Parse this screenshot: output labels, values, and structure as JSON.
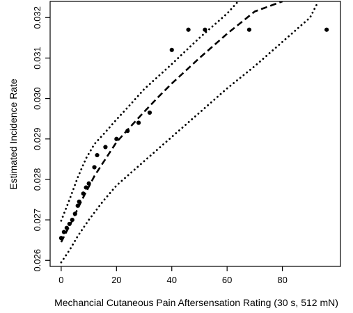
{
  "chart_data": {
    "type": "scatter",
    "title": "",
    "xlabel": "Mechancial Cutaneous Pain Aftersensation Rating (30 s, 512 mN)",
    "ylabel": "Estimated Incidence Rate",
    "xlim": [
      -4,
      101
    ],
    "ylim": [
      0.02585,
      0.0324
    ],
    "xticks": [
      0,
      20,
      40,
      60,
      80
    ],
    "xtick_labels": [
      "0",
      "20",
      "40",
      "60",
      "80"
    ],
    "yticks": [
      0.026,
      0.027,
      0.028,
      0.029,
      0.03,
      0.031,
      0.032
    ],
    "ytick_labels": [
      "0.026",
      "0.027",
      "0.028",
      "0.029",
      "0.030",
      "0.031",
      "0.032"
    ],
    "grid": false,
    "legend": "none",
    "colors": {
      "points": "#000000",
      "fit": "#000000",
      "ci": "#000000",
      "axis": "#000000"
    },
    "series": [
      {
        "type": "points",
        "x": [
          0,
          1,
          2,
          3,
          4,
          5,
          6,
          6.5,
          8,
          9,
          10,
          12,
          13,
          16,
          20,
          24,
          28,
          32,
          40,
          46,
          52,
          68,
          96
        ],
        "y": [
          0.02655,
          0.0267,
          0.0268,
          0.0269,
          0.027,
          0.02715,
          0.02735,
          0.02745,
          0.02765,
          0.0278,
          0.0279,
          0.0283,
          0.0286,
          0.0288,
          0.029,
          0.0292,
          0.0294,
          0.02965,
          0.0312,
          0.0317,
          0.0317,
          0.0317,
          0.0317
        ]
      },
      {
        "type": "fit-line",
        "x": [
          0,
          2,
          4,
          6,
          8,
          10,
          12,
          15,
          20,
          25,
          30,
          35,
          40,
          50,
          60,
          70,
          80
        ],
        "y": [
          0.02645,
          0.02672,
          0.02698,
          0.02728,
          0.02756,
          0.02782,
          0.02808,
          0.0284,
          0.02892,
          0.0293,
          0.02967,
          0.03003,
          0.03037,
          0.031,
          0.0316,
          0.03215,
          0.0324
        ]
      },
      {
        "type": "upper-ci",
        "x": [
          0,
          3,
          6,
          9,
          12,
          16,
          20,
          25,
          30,
          40,
          50,
          60,
          64
        ],
        "y": [
          0.02698,
          0.0275,
          0.02805,
          0.02852,
          0.02887,
          0.02917,
          0.02948,
          0.02985,
          0.03023,
          0.03085,
          0.0315,
          0.0321,
          0.0324
        ]
      },
      {
        "type": "lower-ci",
        "x": [
          0,
          3,
          6,
          10,
          15,
          20,
          25,
          30,
          40,
          50,
          60,
          70,
          80,
          90,
          93
        ],
        "y": [
          0.02595,
          0.02625,
          0.0266,
          0.027,
          0.02745,
          0.02785,
          0.02815,
          0.02845,
          0.02905,
          0.02965,
          0.03025,
          0.0308,
          0.0314,
          0.032,
          0.0324
        ]
      }
    ]
  }
}
